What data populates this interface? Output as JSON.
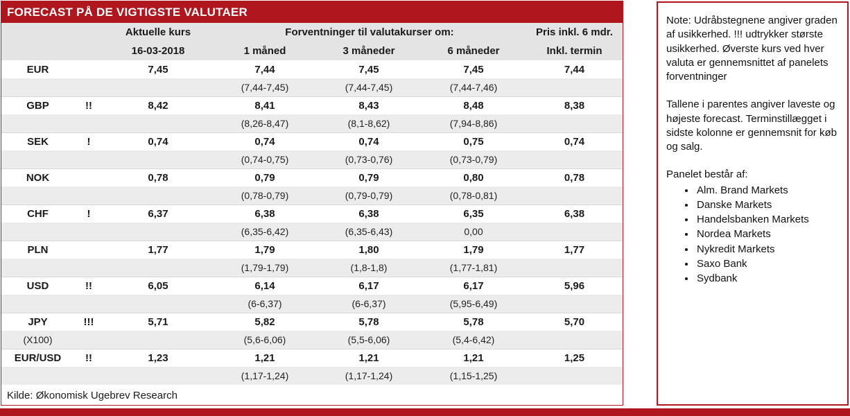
{
  "colors": {
    "accent": "#B0161D"
  },
  "title": "FORECAST PÅ DE VIGTIGSTE VALUTAER",
  "source": "Kilde: Økonomisk Ugebrev Research",
  "table": {
    "header": {
      "current_line1": "Aktuelle kurs",
      "current_line2": "16-03-2018",
      "expectations": "Forventninger til valutakurser om:",
      "m1": "1 måned",
      "m3": "3 måneder",
      "m6": "6 måneder",
      "price_line1": "Pris inkl. 6 mdr.",
      "price_line2": "Inkl. termin"
    },
    "rows": [
      {
        "currency": "EUR",
        "sub": "",
        "marks": "",
        "current": "7,45",
        "m1": "7,44",
        "m1_range": "(7,44-7,45)",
        "m3": "7,45",
        "m3_range": "(7,44-7,45)",
        "m6": "7,45",
        "m6_range": "(7,44-7,46)",
        "termin": "7,44"
      },
      {
        "currency": "GBP",
        "sub": "",
        "marks": "!!",
        "current": "8,42",
        "m1": "8,41",
        "m1_range": "(8,26-8,47)",
        "m3": "8,43",
        "m3_range": "(8,1-8,62)",
        "m6": "8,48",
        "m6_range": "(7,94-8,86)",
        "termin": "8,38"
      },
      {
        "currency": "SEK",
        "sub": "",
        "marks": "!",
        "current": "0,74",
        "m1": "0,74",
        "m1_range": "(0,74-0,75)",
        "m3": "0,74",
        "m3_range": "(0,73-0,76)",
        "m6": "0,75",
        "m6_range": "(0,73-0,79)",
        "termin": "0,74"
      },
      {
        "currency": "NOK",
        "sub": "",
        "marks": "",
        "current": "0,78",
        "m1": "0,79",
        "m1_range": "(0,78-0,79)",
        "m3": "0,79",
        "m3_range": "(0,79-0,79)",
        "m6": "0,80",
        "m6_range": "(0,78-0,81)",
        "termin": "0,78"
      },
      {
        "currency": "CHF",
        "sub": "",
        "marks": "!",
        "current": "6,37",
        "m1": "6,38",
        "m1_range": "(6,35-6,42)",
        "m3": "6,38",
        "m3_range": "(6,35-6,43)",
        "m6": "6,35",
        "m6_range": "0,00",
        "termin": "6,38"
      },
      {
        "currency": "PLN",
        "sub": "",
        "marks": "",
        "current": "1,77",
        "m1": "1,79",
        "m1_range": "(1,79-1,79)",
        "m3": "1,80",
        "m3_range": "(1,8-1,8)",
        "m6": "1,79",
        "m6_range": "(1,77-1,81)",
        "termin": "1,77"
      },
      {
        "currency": "USD",
        "sub": "",
        "marks": "!!",
        "current": "6,05",
        "m1": "6,14",
        "m1_range": "(6-6,37)",
        "m3": "6,17",
        "m3_range": "(6-6,37)",
        "m6": "6,17",
        "m6_range": "(5,95-6,49)",
        "termin": "5,96"
      },
      {
        "currency": "JPY",
        "sub": "(X100)",
        "marks": "!!!",
        "current": "5,71",
        "m1": "5,82",
        "m1_range": "(5,6-6,06)",
        "m3": "5,78",
        "m3_range": "(5,5-6,06)",
        "m6": "5,78",
        "m6_range": "(5,4-6,42)",
        "termin": "5,70"
      },
      {
        "currency": "EUR/USD",
        "sub": "",
        "marks": "!!",
        "current": "1,23",
        "m1": "1,21",
        "m1_range": "(1,17-1,24)",
        "m3": "1,21",
        "m3_range": "(1,17-1,24)",
        "m6": "1,21",
        "m6_range": "(1,15-1,25)",
        "termin": "1,25"
      }
    ]
  },
  "note": {
    "p1": "Note: Udråbstegnene angiver graden af usikkerhed. !!! udtrykker største usikkerhed. Øverste kurs ved hver valuta er gennemsnittet af panelets forventninger",
    "p2": "Tallene i parentes angiver laveste og højeste forecast. Terminstillægget i sidste kolonne er gennemsnit for køb og salg.",
    "panel_heading": "Panelet består af:",
    "members": [
      "Alm. Brand Markets",
      "Danske Markets",
      "Handelsbanken Markets",
      "Nordea Markets",
      "Nykredit Markets",
      "Saxo Bank",
      "Sydbank"
    ]
  }
}
